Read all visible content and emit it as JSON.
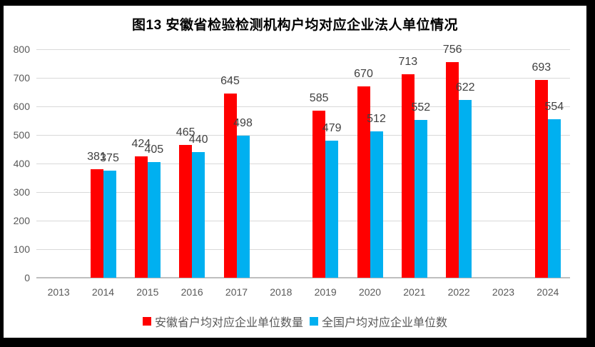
{
  "chart_data": {
    "type": "bar",
    "title": "图13 安徽省检验检测机构户均对应企业法人单位情况",
    "categories": [
      "2013",
      "2014",
      "2015",
      "2016",
      "2017",
      "2018",
      "2019",
      "2020",
      "2021",
      "2022",
      "2023",
      "2024"
    ],
    "series": [
      {
        "name": "安徽省户均对应企业单位数量",
        "color": "#FF0000",
        "values": [
          null,
          381,
          424,
          465,
          645,
          null,
          585,
          670,
          713,
          756,
          null,
          693
        ]
      },
      {
        "name": "全国户均对应企业单位数",
        "color": "#00B0F0",
        "values": [
          null,
          375,
          405,
          440,
          498,
          null,
          479,
          512,
          552,
          622,
          null,
          554
        ]
      }
    ],
    "xlabel": "",
    "ylabel": "",
    "ylim": [
      0,
      800
    ],
    "ytick_step": 100,
    "grid": true,
    "value_labels": true,
    "legend_position": "bottom"
  },
  "colors": {
    "frame_border": "#000000",
    "background": "#FFFFFF",
    "title": "#000000",
    "gridline": "#D9D9D9",
    "axis_line": "#BFBFBF",
    "tick_label": "#595959",
    "value_label": "#404040",
    "legend_label": "#595959"
  }
}
